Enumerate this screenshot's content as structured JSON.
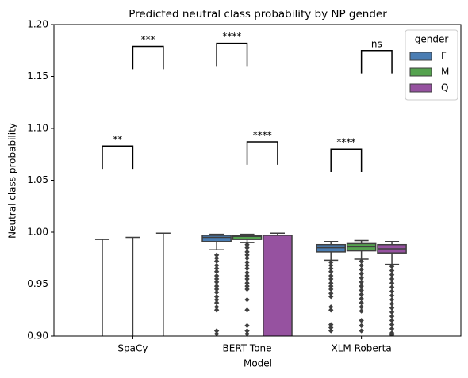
{
  "chart_data": {
    "type": "box",
    "title": "Predicted neutral class probability by NP gender",
    "x_label": "Model",
    "y_label": "Neutral class probability",
    "categories": [
      "SpaCy",
      "BERT Tone",
      "XLM Roberta"
    ],
    "xlim": [
      -0.69,
      2.87
    ],
    "ylim": [
      0.9,
      1.2
    ],
    "yticks": [
      {
        "value": 0.9,
        "label": "0.90"
      },
      {
        "value": 0.95,
        "label": "0.95"
      },
      {
        "value": 1.0,
        "label": "1.00"
      },
      {
        "value": 1.05,
        "label": "1.05"
      },
      {
        "value": 1.1,
        "label": "1.10"
      },
      {
        "value": 1.15,
        "label": "1.15"
      },
      {
        "value": 1.2,
        "label": "1.20"
      }
    ],
    "legend": {
      "title": "gender",
      "position": "upper right"
    },
    "series": [
      {
        "name": "F",
        "color": "#4a7db3",
        "boxes": [
          {
            "whislo": null,
            "q1": null,
            "median": null,
            "q3": null,
            "whishi": 0.993,
            "outliers": []
          },
          {
            "whislo": 0.983,
            "q1": 0.991,
            "median": 0.995,
            "q3": 0.997,
            "whishi": 0.998,
            "outliers": [
              0.978,
              0.975,
              0.972,
              0.968,
              0.965,
              0.962,
              0.958,
              0.955,
              0.952,
              0.948,
              0.945,
              0.942,
              0.938,
              0.935,
              0.932,
              0.928,
              0.925,
              0.905,
              0.902
            ]
          },
          {
            "whislo": 0.973,
            "q1": 0.981,
            "median": 0.985,
            "q3": 0.988,
            "whishi": 0.991,
            "outliers": [
              0.971,
              0.968,
              0.965,
              0.962,
              0.958,
              0.955,
              0.951,
              0.948,
              0.945,
              0.941,
              0.938,
              0.928,
              0.925,
              0.911,
              0.908,
              0.905
            ]
          }
        ]
      },
      {
        "name": "M",
        "color": "#55a24f",
        "boxes": [
          {
            "whislo": null,
            "q1": null,
            "median": null,
            "q3": null,
            "whishi": 0.995,
            "outliers": []
          },
          {
            "whislo": 0.99,
            "q1": 0.993,
            "median": 0.996,
            "q3": 0.997,
            "whishi": 0.998,
            "outliers": [
              0.988,
              0.985,
              0.981,
              0.978,
              0.975,
              0.971,
              0.968,
              0.965,
              0.961,
              0.958,
              0.955,
              0.951,
              0.948,
              0.945,
              0.935,
              0.925,
              0.91,
              0.905,
              0.902
            ]
          },
          {
            "whislo": 0.974,
            "q1": 0.982,
            "median": 0.986,
            "q3": 0.989,
            "whishi": 0.992,
            "outliers": [
              0.972,
              0.968,
              0.964,
              0.96,
              0.956,
              0.952,
              0.948,
              0.944,
              0.94,
              0.936,
              0.932,
              0.928,
              0.924,
              0.915,
              0.91,
              0.905
            ]
          }
        ]
      },
      {
        "name": "Q",
        "color": "#9652a0",
        "boxes": [
          {
            "whislo": null,
            "q1": null,
            "median": null,
            "q3": null,
            "whishi": 0.999,
            "outliers": []
          },
          {
            "whislo": null,
            "q1": null,
            "median": null,
            "q3": 0.997,
            "whishi": 0.999,
            "outliers": []
          },
          {
            "whislo": 0.969,
            "q1": 0.98,
            "median": 0.984,
            "q3": 0.988,
            "whishi": 0.991,
            "outliers": [
              0.967,
              0.963,
              0.959,
              0.955,
              0.951,
              0.947,
              0.943,
              0.939,
              0.935,
              0.931,
              0.927,
              0.923,
              0.919,
              0.915,
              0.911,
              0.907,
              0.903,
              0.901
            ]
          }
        ]
      }
    ],
    "annotations": [
      {
        "label": "**",
        "category": 0,
        "from": 0,
        "to": 1,
        "top": 1.083,
        "bottom": 1.061
      },
      {
        "label": "***",
        "category": 0,
        "from": 1,
        "to": 2,
        "top": 1.179,
        "bottom": 1.157
      },
      {
        "label": "****",
        "category": 1,
        "from": 0,
        "to": 1,
        "top": 1.182,
        "bottom": 1.16
      },
      {
        "label": "****",
        "category": 1,
        "from": 1,
        "to": 2,
        "top": 1.087,
        "bottom": 1.065
      },
      {
        "label": "****",
        "category": 2,
        "from": 0,
        "to": 1,
        "top": 1.08,
        "bottom": 1.058
      },
      {
        "label": "ns",
        "category": 2,
        "from": 1,
        "to": 2,
        "top": 1.175,
        "bottom": 1.153
      }
    ]
  }
}
